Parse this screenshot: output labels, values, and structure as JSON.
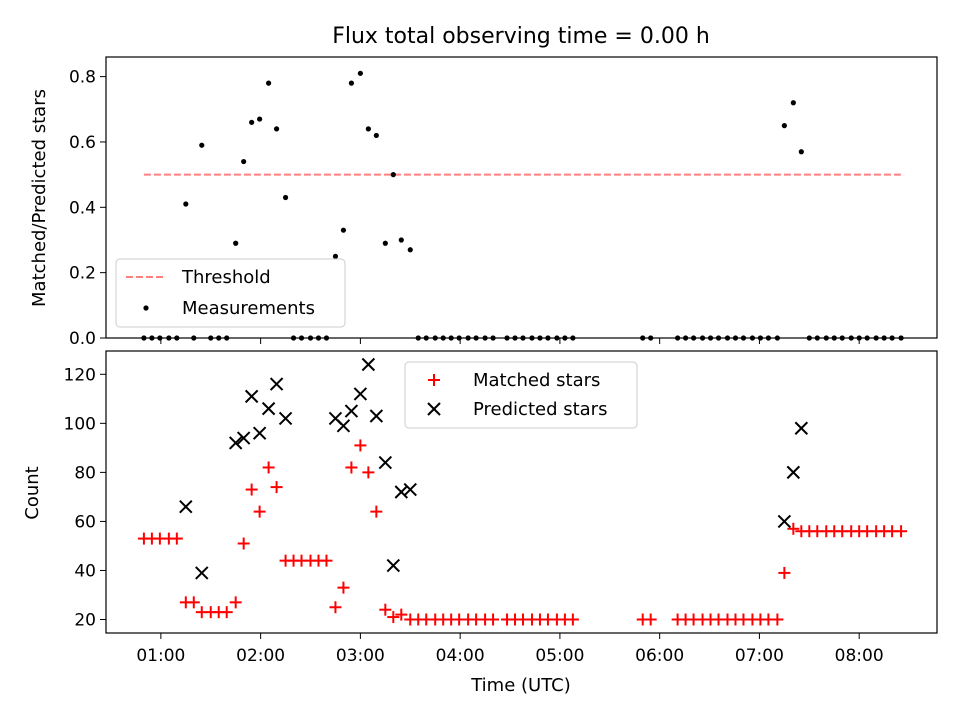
{
  "title": "Flux total observing time = 0.00 h",
  "colors": {
    "threshold": "#ff7f7f",
    "matched": "#ff0000",
    "predicted": "#000000",
    "measurement": "#000000"
  },
  "chart_data": [
    {
      "type": "scatter",
      "ylabel": "Matched/Predicted stars",
      "xlim": [
        0.45,
        8.78
      ],
      "ylim": [
        0.0,
        0.86
      ],
      "yticks": [
        0.0,
        0.2,
        0.4,
        0.6,
        0.8
      ],
      "ytick_labels": [
        "0.0",
        "0.2",
        "0.4",
        "0.6",
        "0.8"
      ],
      "legend": {
        "position": "lower-left",
        "entries": [
          "Threshold",
          "Measurements"
        ]
      },
      "series": [
        {
          "name": "Threshold",
          "kind": "dashed-line",
          "x": [
            0.83,
            8.45
          ],
          "values": [
            0.5,
            0.5
          ]
        },
        {
          "name": "Measurements",
          "kind": "dot",
          "points": [
            [
              0.83,
              0.0
            ],
            [
              0.91,
              0.0
            ],
            [
              0.99,
              0.0
            ],
            [
              1.08,
              0.0
            ],
            [
              1.16,
              0.0
            ],
            [
              1.25,
              0.41
            ],
            [
              1.33,
              0.0
            ],
            [
              1.41,
              0.59
            ],
            [
              1.5,
              0.0
            ],
            [
              1.58,
              0.0
            ],
            [
              1.66,
              0.0
            ],
            [
              1.75,
              0.29
            ],
            [
              1.83,
              0.54
            ],
            [
              1.91,
              0.66
            ],
            [
              1.99,
              0.67
            ],
            [
              2.08,
              0.78
            ],
            [
              2.16,
              0.64
            ],
            [
              2.25,
              0.43
            ],
            [
              2.33,
              0.0
            ],
            [
              2.41,
              0.0
            ],
            [
              2.5,
              0.0
            ],
            [
              2.58,
              0.0
            ],
            [
              2.66,
              0.0
            ],
            [
              2.75,
              0.25
            ],
            [
              2.83,
              0.33
            ],
            [
              2.91,
              0.78
            ],
            [
              3.0,
              0.81
            ],
            [
              3.08,
              0.64
            ],
            [
              3.16,
              0.62
            ],
            [
              3.25,
              0.29
            ],
            [
              3.33,
              0.5
            ],
            [
              3.41,
              0.3
            ],
            [
              3.5,
              0.27
            ],
            [
              3.58,
              0.0
            ],
            [
              3.66,
              0.0
            ],
            [
              3.75,
              0.0
            ],
            [
              3.83,
              0.0
            ],
            [
              3.91,
              0.0
            ],
            [
              3.99,
              0.0
            ],
            [
              4.08,
              0.0
            ],
            [
              4.16,
              0.0
            ],
            [
              4.25,
              0.0
            ],
            [
              4.33,
              0.0
            ],
            [
              4.47,
              0.0
            ],
            [
              4.55,
              0.0
            ],
            [
              4.63,
              0.0
            ],
            [
              4.72,
              0.0
            ],
            [
              4.8,
              0.0
            ],
            [
              4.88,
              0.0
            ],
            [
              4.97,
              0.0
            ],
            [
              5.05,
              0.0
            ],
            [
              5.13,
              0.0
            ],
            [
              5.83,
              0.0
            ],
            [
              5.91,
              0.0
            ],
            [
              6.18,
              0.0
            ],
            [
              6.26,
              0.0
            ],
            [
              6.34,
              0.0
            ],
            [
              6.43,
              0.0
            ],
            [
              6.51,
              0.0
            ],
            [
              6.59,
              0.0
            ],
            [
              6.68,
              0.0
            ],
            [
              6.76,
              0.0
            ],
            [
              6.84,
              0.0
            ],
            [
              6.93,
              0.0
            ],
            [
              7.01,
              0.0
            ],
            [
              7.09,
              0.0
            ],
            [
              7.18,
              0.0
            ],
            [
              7.25,
              0.65
            ],
            [
              7.34,
              0.72
            ],
            [
              7.42,
              0.57
            ],
            [
              7.5,
              0.0
            ],
            [
              7.58,
              0.0
            ],
            [
              7.67,
              0.0
            ],
            [
              7.75,
              0.0
            ],
            [
              7.83,
              0.0
            ],
            [
              7.92,
              0.0
            ],
            [
              8.0,
              0.0
            ],
            [
              8.08,
              0.0
            ],
            [
              8.17,
              0.0
            ],
            [
              8.25,
              0.0
            ],
            [
              8.33,
              0.0
            ],
            [
              8.42,
              0.0
            ]
          ]
        }
      ]
    },
    {
      "type": "scatter",
      "xlabel": "Time (UTC)",
      "ylabel": "Count",
      "xlim": [
        0.45,
        8.78
      ],
      "ylim": [
        14.5,
        129.5
      ],
      "xticks": [
        1,
        2,
        3,
        4,
        5,
        6,
        7,
        8
      ],
      "xtick_labels": [
        "01:00",
        "02:00",
        "03:00",
        "04:00",
        "05:00",
        "06:00",
        "07:00",
        "08:00"
      ],
      "yticks": [
        20,
        40,
        60,
        80,
        100,
        120
      ],
      "ytick_labels": [
        "20",
        "40",
        "60",
        "80",
        "100",
        "120"
      ],
      "legend": {
        "position": "top-center",
        "entries": [
          "Matched stars",
          "Predicted stars"
        ]
      },
      "series": [
        {
          "name": "Matched stars",
          "kind": "plus",
          "points": [
            [
              0.83,
              53
            ],
            [
              0.91,
              53
            ],
            [
              0.99,
              53
            ],
            [
              1.08,
              53
            ],
            [
              1.16,
              53
            ],
            [
              1.25,
              27
            ],
            [
              1.33,
              27
            ],
            [
              1.41,
              23
            ],
            [
              1.5,
              23
            ],
            [
              1.58,
              23
            ],
            [
              1.66,
              23
            ],
            [
              1.75,
              27
            ],
            [
              1.83,
              51
            ],
            [
              1.91,
              73
            ],
            [
              1.99,
              64
            ],
            [
              2.08,
              82
            ],
            [
              2.16,
              74
            ],
            [
              2.25,
              44
            ],
            [
              2.33,
              44
            ],
            [
              2.41,
              44
            ],
            [
              2.5,
              44
            ],
            [
              2.58,
              44
            ],
            [
              2.66,
              44
            ],
            [
              2.75,
              25
            ],
            [
              2.83,
              33
            ],
            [
              2.91,
              82
            ],
            [
              3.0,
              91
            ],
            [
              3.08,
              80
            ],
            [
              3.16,
              64
            ],
            [
              3.25,
              24
            ],
            [
              3.33,
              21
            ],
            [
              3.41,
              22
            ],
            [
              3.5,
              20
            ],
            [
              3.58,
              20
            ],
            [
              3.66,
              20
            ],
            [
              3.75,
              20
            ],
            [
              3.83,
              20
            ],
            [
              3.91,
              20
            ],
            [
              3.99,
              20
            ],
            [
              4.08,
              20
            ],
            [
              4.16,
              20
            ],
            [
              4.25,
              20
            ],
            [
              4.33,
              20
            ],
            [
              4.47,
              20
            ],
            [
              4.55,
              20
            ],
            [
              4.63,
              20
            ],
            [
              4.72,
              20
            ],
            [
              4.8,
              20
            ],
            [
              4.88,
              20
            ],
            [
              4.97,
              20
            ],
            [
              5.05,
              20
            ],
            [
              5.13,
              20
            ],
            [
              5.83,
              20
            ],
            [
              5.91,
              20
            ],
            [
              6.18,
              20
            ],
            [
              6.26,
              20
            ],
            [
              6.34,
              20
            ],
            [
              6.43,
              20
            ],
            [
              6.51,
              20
            ],
            [
              6.59,
              20
            ],
            [
              6.68,
              20
            ],
            [
              6.76,
              20
            ],
            [
              6.84,
              20
            ],
            [
              6.93,
              20
            ],
            [
              7.01,
              20
            ],
            [
              7.09,
              20
            ],
            [
              7.18,
              20
            ],
            [
              7.25,
              39
            ],
            [
              7.34,
              57
            ],
            [
              7.42,
              56
            ],
            [
              7.5,
              56
            ],
            [
              7.58,
              56
            ],
            [
              7.67,
              56
            ],
            [
              7.75,
              56
            ],
            [
              7.83,
              56
            ],
            [
              7.92,
              56
            ],
            [
              8.0,
              56
            ],
            [
              8.08,
              56
            ],
            [
              8.17,
              56
            ],
            [
              8.25,
              56
            ],
            [
              8.33,
              56
            ],
            [
              8.42,
              56
            ]
          ]
        },
        {
          "name": "Predicted stars",
          "kind": "x",
          "points": [
            [
              1.25,
              66
            ],
            [
              1.41,
              39
            ],
            [
              1.75,
              92
            ],
            [
              1.83,
              94
            ],
            [
              1.91,
              111
            ],
            [
              1.99,
              96
            ],
            [
              2.08,
              106
            ],
            [
              2.16,
              116
            ],
            [
              2.25,
              102
            ],
            [
              2.75,
              102
            ],
            [
              2.83,
              99
            ],
            [
              2.91,
              105
            ],
            [
              3.0,
              112
            ],
            [
              3.08,
              124
            ],
            [
              3.16,
              103
            ],
            [
              3.25,
              84
            ],
            [
              3.33,
              42
            ],
            [
              3.41,
              72
            ],
            [
              3.5,
              73
            ],
            [
              7.25,
              60
            ],
            [
              7.34,
              80
            ],
            [
              7.42,
              98
            ]
          ]
        }
      ]
    }
  ]
}
